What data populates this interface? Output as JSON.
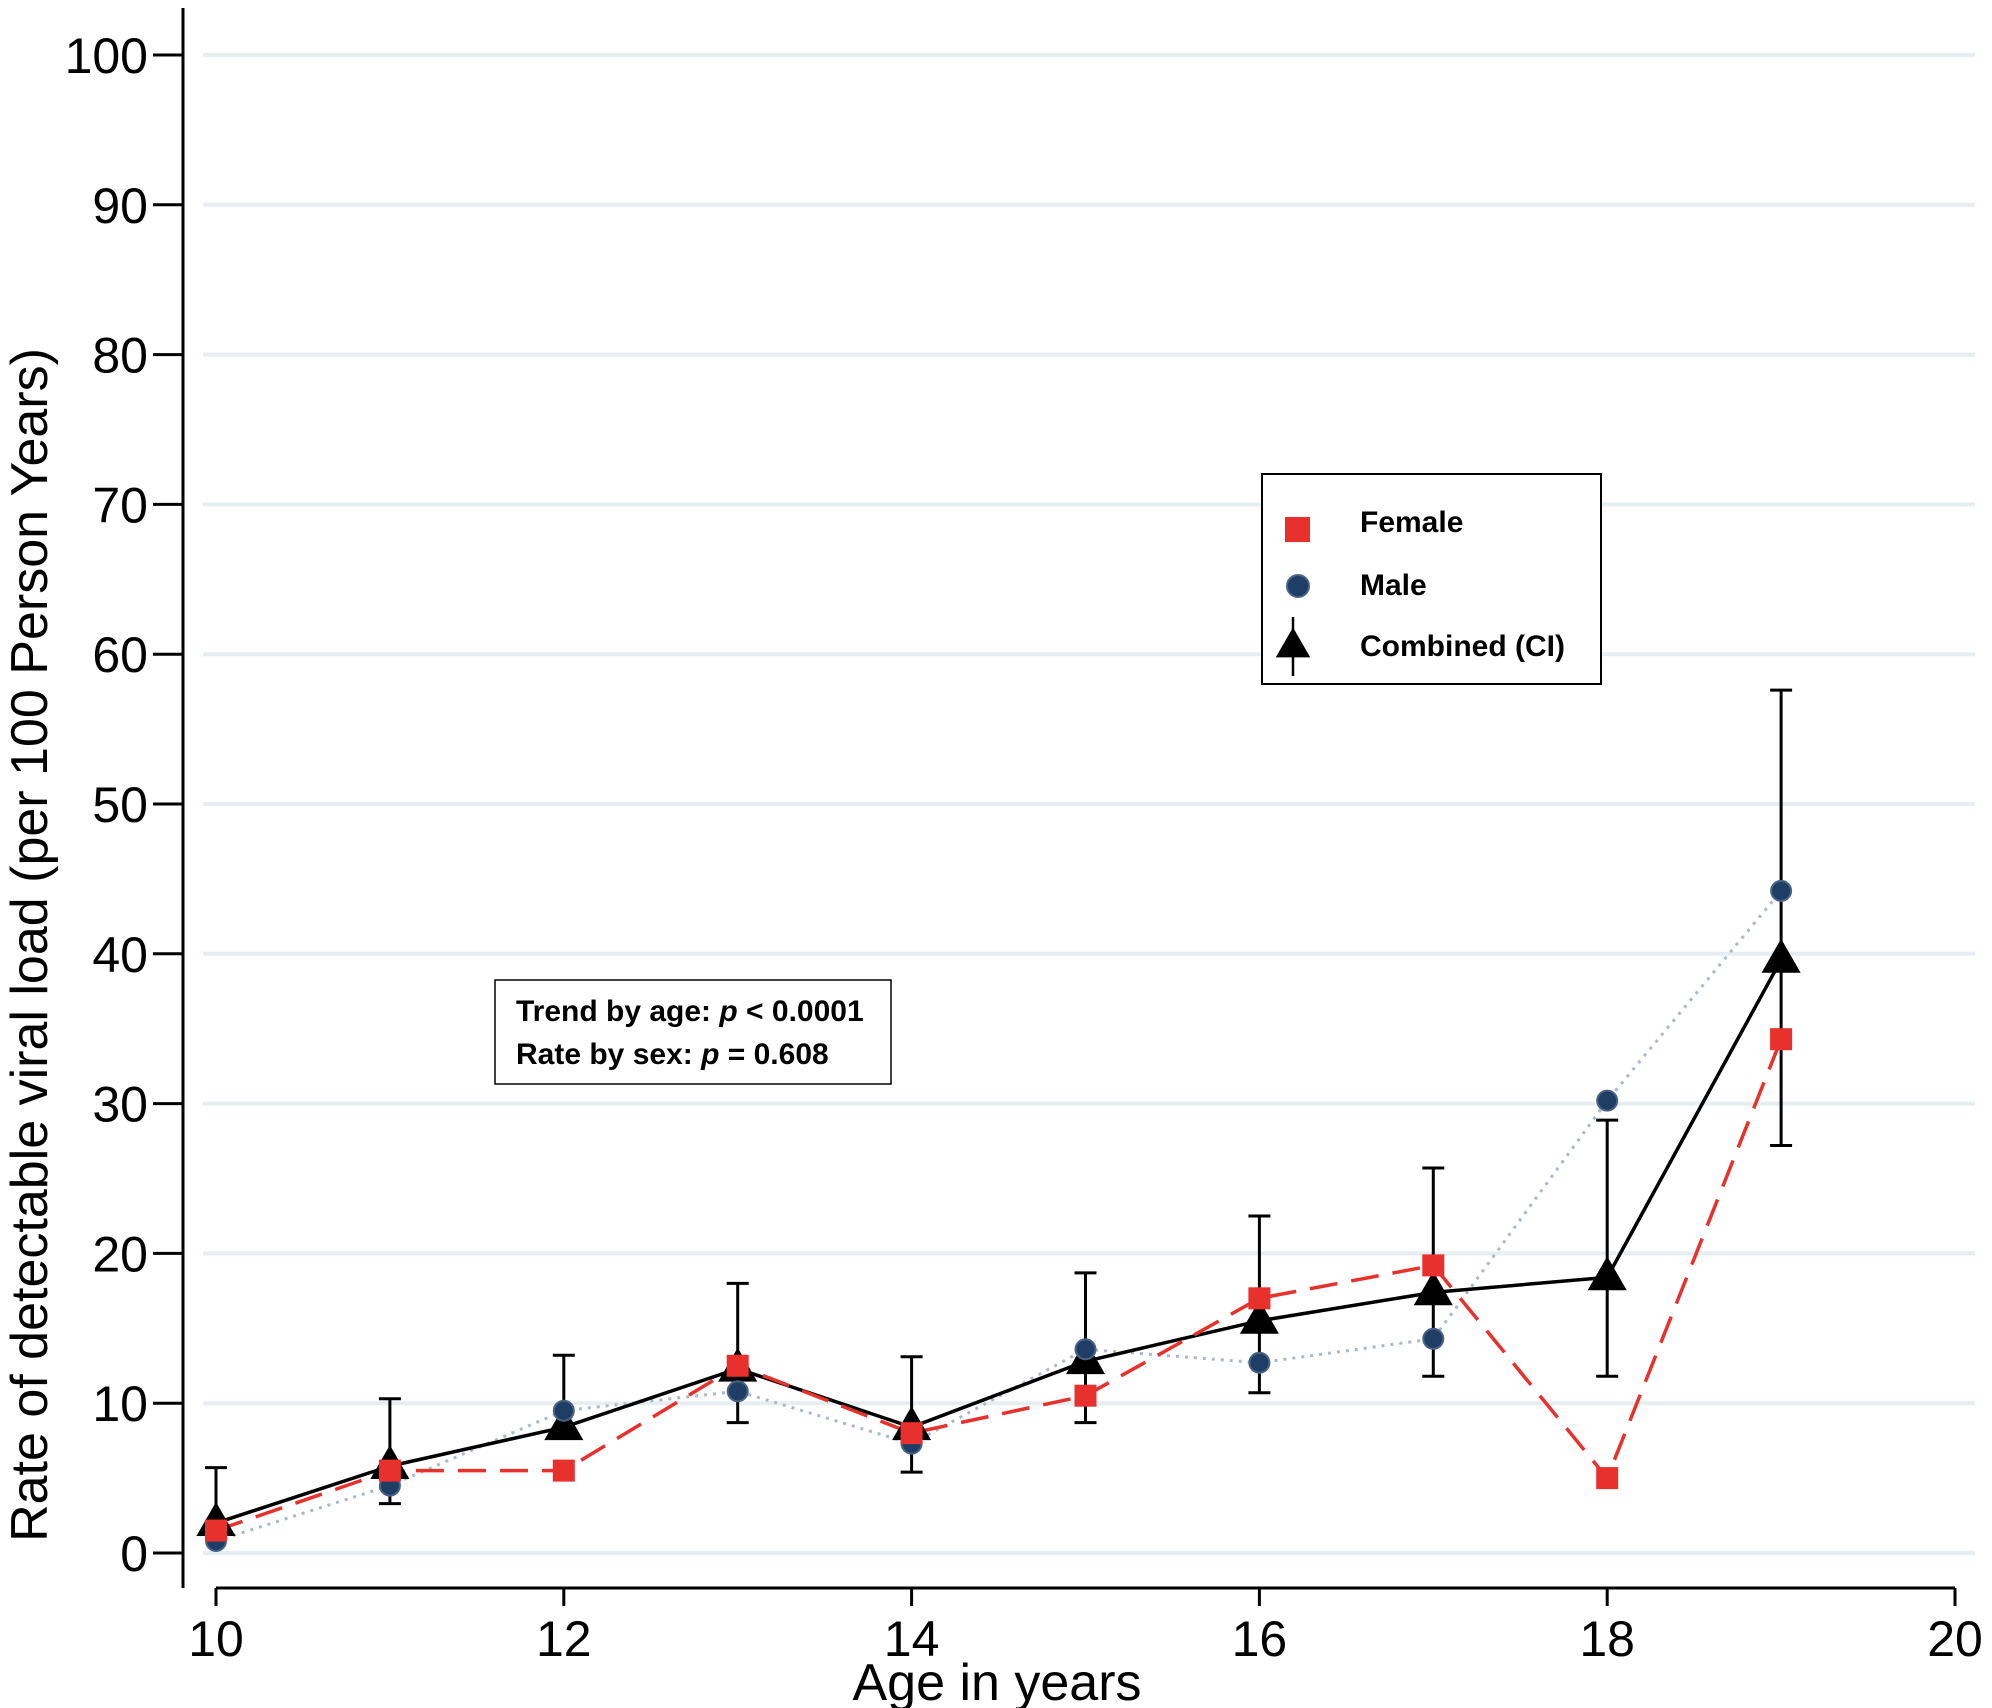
{
  "chart_data": {
    "type": "line",
    "xlabel": "Age in years",
    "ylabel": "Rate of detectable viral  load (per 100 Person Years)",
    "xlim": [
      10,
      20
    ],
    "ylim": [
      0,
      100
    ],
    "x_ticks": [
      10,
      12,
      14,
      16,
      18,
      20
    ],
    "y_ticks": [
      0,
      10,
      20,
      30,
      40,
      50,
      60,
      70,
      80,
      90,
      100
    ],
    "grid": true,
    "legend_position": "center-right",
    "x": [
      10,
      11,
      12,
      13,
      14,
      15,
      16,
      17,
      18,
      19
    ],
    "series": [
      {
        "name": "Female",
        "marker": "square",
        "line": "dashed",
        "color": "#e8302c",
        "values": [
          1.5,
          5.5,
          5.5,
          12.5,
          8.0,
          10.5,
          17.0,
          19.2,
          5.0,
          34.3
        ]
      },
      {
        "name": "Male",
        "marker": "circle",
        "line": "dotted",
        "color": "#1f3e66",
        "line_color": "#a9b9c9",
        "values": [
          0.8,
          4.5,
          9.5,
          10.8,
          7.3,
          13.6,
          12.7,
          14.3,
          30.2,
          44.2
        ]
      },
      {
        "name": "Combined (CI)",
        "marker": "triangle",
        "line": "solid",
        "color": "#000000",
        "values": [
          2.0,
          5.8,
          8.4,
          12.3,
          8.4,
          12.8,
          15.5,
          17.4,
          18.4,
          39.6
        ],
        "ci_lower": [
          null,
          3.3,
          null,
          8.7,
          5.4,
          8.7,
          10.7,
          11.8,
          11.8,
          27.2
        ],
        "ci_upper": [
          5.7,
          10.3,
          13.2,
          18.0,
          13.1,
          18.7,
          22.5,
          25.7,
          28.9,
          57.6
        ]
      }
    ],
    "annotation": [
      "Trend by age: p < 0.0001",
      "Rate by sex:  p = 0.608"
    ]
  }
}
